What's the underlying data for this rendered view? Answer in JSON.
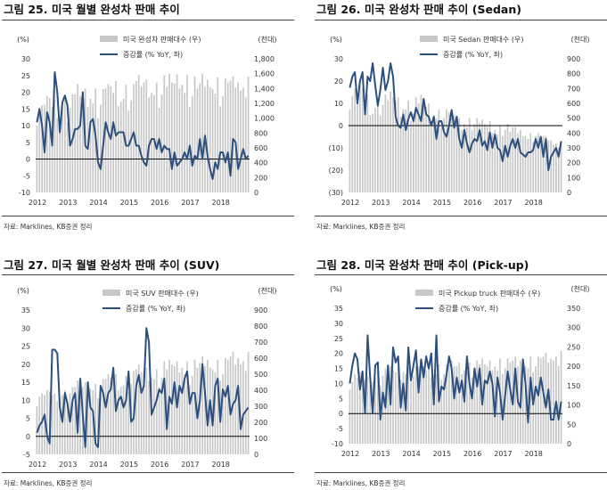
{
  "colors": {
    "bar": "#c8c8c8",
    "line": "#2b4f7e",
    "zero": "#000000"
  },
  "panels": [
    {
      "title": "그림 25. 미국 월별 완성차 판매 추이",
      "source": "자료: Marklines, KB증권 정리",
      "chart_data": {
        "type": "bar",
        "title": "그림 25. 미국 월별 완성차 판매 추이",
        "legend": [
          "미국 완성차 판매대수 (우)",
          "증감률 (% YoY, 좌)"
        ],
        "left_unit": "(%)",
        "right_unit": "(천대)",
        "ylim_left": [
          -10,
          30
        ],
        "yticks_left": [
          "30",
          "25",
          "20",
          "15",
          "10",
          "5",
          "0",
          "-5",
          "-10"
        ],
        "ylim_right": [
          0,
          1800
        ],
        "yticks_right": [
          "1,800",
          "1,600",
          "1,400",
          "1,200",
          "1,000",
          "800",
          "600",
          "400",
          "200",
          "0"
        ],
        "x_labels": [
          "2012",
          "2013",
          "2014",
          "2015",
          "2016",
          "2017",
          "2018"
        ],
        "series": [
          {
            "name": "미국 완성차 판매대수 (우)",
            "type": "bar",
            "values": [
              900,
              1080,
              1170,
              1180,
              1300,
              1270,
              1150,
              1250,
              1000,
              1020,
              1150,
              1250,
              950,
              1140,
              1320,
              1320,
              1460,
              1300,
              1290,
              1400,
              1150,
              1260,
              1200,
              1400,
              1000,
              1180,
              1390,
              1400,
              1460,
              1430,
              1340,
              1500,
              1160,
              1220,
              1260,
              1450,
              1100,
              1240,
              1460,
              1500,
              1580,
              1420,
              1480,
              1520,
              1280,
              1340,
              1310,
              1480,
              1140,
              1320,
              1580,
              1420,
              1600,
              1480,
              1470,
              1590,
              1400,
              1450,
              1340,
              1580,
              1150,
              1300,
              1560,
              1400,
              1470,
              1600,
              1420,
              1520,
              1420,
              1390,
              1330,
              1550,
              1160,
              1300,
              1540,
              1480,
              1510,
              1560,
              1410,
              1480,
              1370,
              1410,
              1280,
              1560
            ]
          },
          {
            "name": "증감률 (% YoY, 좌)",
            "type": "line",
            "values": [
              11,
              15,
              10,
              2,
              14,
              11,
              4,
              26,
              20,
              8,
              17,
              19,
              16,
              4,
              6,
              9,
              9,
              10,
              20,
              4,
              3,
              11,
              12,
              7,
              -1,
              -3,
              4,
              11,
              8,
              6,
              11,
              7,
              8,
              8,
              8,
              4,
              4,
              6,
              8,
              4,
              4,
              1,
              -1,
              -2,
              4,
              6,
              6,
              3,
              6,
              2,
              4,
              3,
              3,
              -3,
              2,
              -2,
              -1,
              0,
              2,
              0,
              4,
              -2,
              1,
              0,
              6,
              0,
              7,
              1,
              -3,
              -6,
              -1,
              -3,
              2,
              2,
              -1,
              2,
              -5,
              6,
              5,
              -3,
              0,
              3,
              0,
              1
            ]
          }
        ]
      }
    },
    {
      "title": "그림 26. 미국 완성차 판매 추이 (Sedan)",
      "source": "자료: Marklines, KB증권 정리",
      "chart_data": {
        "type": "bar",
        "title": "그림 26. 미국 완성차 판매 추이 (Sedan)",
        "legend": [
          "미국 Sedan 판매대수 (우)",
          "증감률 (% YoY, 좌)"
        ],
        "left_unit": "(%)",
        "right_unit": "(천대)",
        "ylim_left": [
          -30,
          30
        ],
        "yticks_left": [
          "30",
          "20",
          "10",
          "0",
          "(10)",
          "(20)",
          "(30)"
        ],
        "ylim_right": [
          0,
          900
        ],
        "yticks_right": [
          "900",
          "800",
          "700",
          "600",
          "500",
          "400",
          "300",
          "200",
          "100",
          "0"
        ],
        "x_labels": [
          "2012",
          "2013",
          "2014",
          "2015",
          "2016",
          "2017",
          "2018"
        ],
        "series": [
          {
            "name": "미국 Sedan 판매대수 (우)",
            "type": "bar",
            "values": [
              560,
              650,
              700,
              620,
              720,
              700,
              620,
              660,
              520,
              530,
              570,
              620,
              520,
              590,
              660,
              620,
              680,
              640,
              620,
              640,
              510,
              560,
              560,
              620,
              480,
              530,
              640,
              600,
              660,
              620,
              580,
              600,
              480,
              520,
              500,
              560,
              440,
              500,
              560,
              540,
              560,
              520,
              500,
              500,
              420,
              460,
              440,
              500,
              420,
              460,
              500,
              470,
              490,
              460,
              450,
              480,
              400,
              420,
              390,
              450,
              380,
              420,
              460,
              410,
              440,
              440,
              400,
              420,
              380,
              380,
              360,
              400,
              340,
              380,
              400,
              380,
              380,
              380,
              350,
              350,
              320,
              330,
              300,
              340
            ]
          },
          {
            "name": "증감률 (% YoY, 좌)",
            "type": "line",
            "values": [
              17,
              22,
              24,
              10,
              20,
              24,
              5,
              22,
              20,
              28,
              18,
              9,
              16,
              26,
              16,
              20,
              28,
              22,
              4,
              0,
              -1,
              5,
              -2,
              3,
              6,
              2,
              8,
              5,
              2,
              12,
              5,
              4,
              0,
              4,
              -6,
              2,
              2,
              -3,
              -5,
              0,
              7,
              -1,
              4,
              -6,
              -10,
              -2,
              -8,
              -12,
              -8,
              -6,
              -7,
              -2,
              -9,
              -7,
              -11,
              -3,
              -10,
              -4,
              -10,
              -11,
              -16,
              -9,
              -14,
              -9,
              -6,
              -10,
              -6,
              -12,
              -13,
              -14,
              -12,
              -12,
              -11,
              -6,
              -10,
              -5,
              -14,
              -6,
              -20,
              -14,
              -12,
              -10,
              -14,
              -7
            ]
          }
        ]
      }
    },
    {
      "title": "그림 27. 미국 월별 완성차 판매 추이 (SUV)",
      "source": "자료: Marklines, KB증권 정리",
      "chart_data": {
        "type": "bar",
        "title": "그림 27. 미국 월별 완성차 판매 추이 (SUV)",
        "legend": [
          "미국 SUV 판매대수 (우)",
          "증감률 (% YoY, 좌)"
        ],
        "left_unit": "(%)",
        "right_unit": "(천대)",
        "ylim_left": [
          -5,
          35
        ],
        "yticks_left": [
          "35",
          "30",
          "25",
          "20",
          "15",
          "10",
          "5",
          "0",
          "-5"
        ],
        "ylim_right": [
          0,
          900
        ],
        "yticks_right": [
          "900",
          "800",
          "700",
          "600",
          "500",
          "400",
          "300",
          "200",
          "100",
          "0"
        ],
        "x_labels": [
          "2012",
          "2013",
          "2014",
          "2015",
          "2016",
          "2017",
          "2018"
        ],
        "series": [
          {
            "name": "미국 SUV 판매대수 (우)",
            "type": "bar",
            "values": [
              300,
              360,
              380,
              370,
              400,
              390,
              370,
              380,
              330,
              340,
              370,
              400,
              330,
              380,
              420,
              420,
              460,
              430,
              420,
              450,
              380,
              410,
              400,
              440,
              350,
              400,
              470,
              470,
              500,
              480,
              460,
              500,
              400,
              420,
              430,
              490,
              390,
              440,
              520,
              530,
              560,
              510,
              520,
              540,
              460,
              480,
              470,
              530,
              420,
              480,
              580,
              530,
              590,
              560,
              550,
              580,
              510,
              540,
              500,
              580,
              430,
              490,
              590,
              540,
              570,
              610,
              550,
              590,
              540,
              530,
              510,
              590,
              460,
              500,
              600,
              590,
              610,
              640,
              560,
              600,
              560,
              580,
              520,
              640
            ]
          },
          {
            "name": "증감률 (% YoY, 좌)",
            "type": "line",
            "values": [
              1,
              3,
              4,
              6,
              0,
              -2,
              24,
              24,
              23,
              8,
              4,
              12,
              9,
              4,
              10,
              12,
              1,
              16,
              6,
              -3,
              15,
              8,
              7,
              -2,
              -3,
              14,
              12,
              8,
              12,
              13,
              19,
              7,
              10,
              11,
              8,
              10,
              18,
              4,
              5,
              14,
              17,
              12,
              14,
              30,
              26,
              6,
              8,
              10,
              13,
              12,
              16,
              2,
              11,
              9,
              15,
              8,
              14,
              12,
              16,
              18,
              9,
              12,
              12,
              5,
              10,
              20,
              12,
              3,
              10,
              3,
              14,
              16,
              4,
              13,
              11,
              14,
              6,
              9,
              10,
              14,
              2,
              6,
              7,
              8
            ]
          }
        ]
      }
    },
    {
      "title": "그림 28. 미국 완성차 판매 추이 (Pick-up)",
      "source": "자료: Marklines, KB증권 정리",
      "chart_data": {
        "type": "bar",
        "title": "그림 28. 미국 완성차 판매 추이 (Pick-up)",
        "legend": [
          "미국 Pickup truck 판매대수 (우)",
          "증감률 (% YoY, 좌)"
        ],
        "left_unit": "(%)",
        "right_unit": "(천대)",
        "ylim_left": [
          -10,
          35
        ],
        "yticks_left": [
          "35",
          "30",
          "25",
          "20",
          "15",
          "10",
          "5",
          "0",
          "-5",
          "-10"
        ],
        "ylim_right": [
          0,
          350
        ],
        "yticks_right": [
          "350",
          "300",
          "250",
          "200",
          "150",
          "100",
          "50",
          "0"
        ],
        "x_labels": [
          "2012",
          "2013",
          "2014",
          "2015",
          "2016",
          "2017",
          "2018"
        ],
        "series": [
          {
            "name": "미국 Pickup truck 판매대수 (우)",
            "type": "bar",
            "values": [
              140,
              160,
              180,
              170,
              185,
              175,
              165,
              175,
              150,
              160,
              170,
              190,
              150,
              175,
              195,
              190,
              200,
              190,
              185,
              195,
              165,
              185,
              180,
              200,
              160,
              175,
              200,
              200,
              210,
              200,
              190,
              200,
              170,
              180,
              180,
              205,
              165,
              180,
              205,
              205,
              215,
              200,
              200,
              210,
              180,
              190,
              185,
              210,
              170,
              190,
              215,
              205,
              220,
              205,
              200,
              215,
              190,
              200,
              190,
              220,
              180,
              195,
              220,
              210,
              215,
              225,
              200,
              215,
              205,
              200,
              195,
              225,
              185,
              200,
              225,
              220,
              225,
              235,
              210,
              220,
              215,
              225,
              200,
              240
            ]
          },
          {
            "name": "증감률 (% YoY, 좌)",
            "type": "line",
            "values": [
              10,
              16,
              20,
              18,
              8,
              14,
              0,
              26,
              12,
              0,
              16,
              17,
              -2,
              7,
              2,
              16,
              3,
              22,
              17,
              19,
              2,
              10,
              1,
              22,
              11,
              16,
              21,
              7,
              18,
              12,
              19,
              15,
              20,
              3,
              26,
              4,
              9,
              8,
              13,
              19,
              15,
              5,
              12,
              7,
              11,
              4,
              19,
              10,
              5,
              15,
              9,
              15,
              3,
              11,
              10,
              14,
              10,
              -1,
              12,
              7,
              -2,
              6,
              14,
              8,
              3,
              15,
              4,
              2,
              18,
              10,
              -3,
              12,
              3,
              9,
              6,
              12,
              7,
              2,
              8,
              -2,
              -2,
              4,
              -2,
              4
            ]
          }
        ]
      }
    }
  ]
}
